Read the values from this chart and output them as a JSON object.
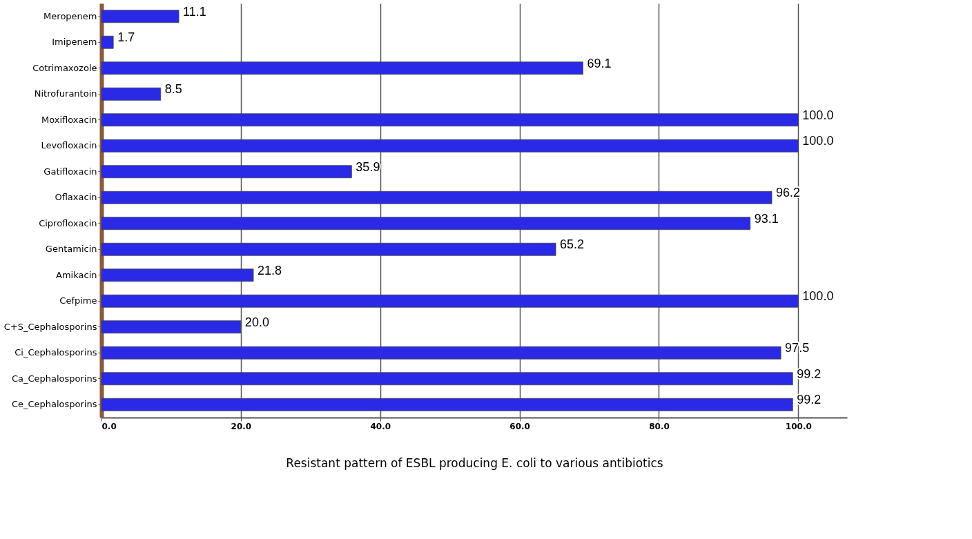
{
  "chart_data": {
    "type": "bar",
    "orientation": "horizontal",
    "xlabel": "Resistant pattern of ESBL producing E. coli to various antibiotics",
    "categories": [
      "Meropenem",
      "Imipenem",
      "Cotrimaxozole",
      "Nitrofurantoin",
      "Moxifloxacin",
      "Levofloxacin",
      "Gatifloxacin",
      "Oflaxacin",
      "Ciprofloxacin",
      "Gentamicin",
      "Amikacin",
      "Cefpime",
      "C+S_Cephalosporins",
      "Ci_Cephalosporins",
      "Ca_Cephalosporins",
      "Ce_Cephalosporins"
    ],
    "values": [
      11.1,
      1.7,
      69.1,
      8.5,
      100.0,
      100.0,
      35.9,
      96.2,
      93.1,
      65.2,
      21.8,
      100.0,
      20.0,
      97.5,
      99.2,
      99.2
    ],
    "value_labels": [
      "11.1",
      "1.7",
      "69.1",
      "8.5",
      "100.0",
      "100.0",
      "35.9",
      "96.2",
      "93.1",
      "65.2",
      "21.8",
      "100.0",
      "20.0",
      "97.5",
      "99.2",
      "99.2"
    ],
    "color": "#2a2ae6",
    "xlim": [
      0,
      107
    ],
    "xticks": [
      {
        "value": 0,
        "label": "0.0"
      },
      {
        "value": 20,
        "label": "20.0"
      },
      {
        "value": 40,
        "label": "40.0"
      },
      {
        "value": 60,
        "label": "60.0"
      },
      {
        "value": 80,
        "label": "80.0"
      },
      {
        "value": 100,
        "label": "100.0"
      }
    ],
    "grid": "x"
  }
}
